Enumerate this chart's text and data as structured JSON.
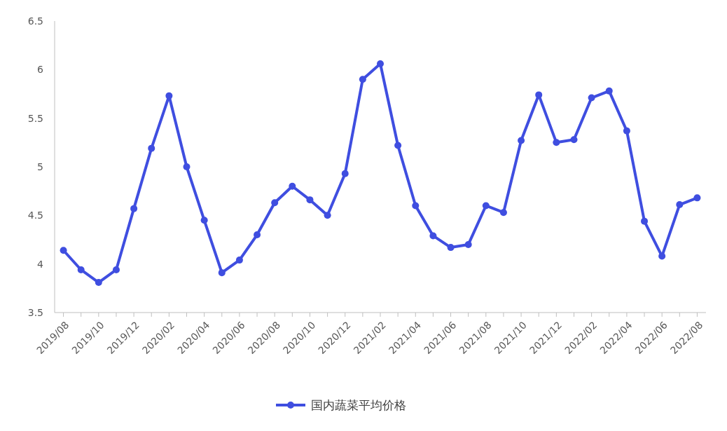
{
  "chart_data": {
    "type": "line",
    "categories": [
      "2019/08",
      null,
      "2019/10",
      null,
      "2019/12",
      null,
      "2020/02",
      null,
      "2020/04",
      null,
      "2020/06",
      null,
      "2020/08",
      null,
      "2020/10",
      null,
      "2020/12",
      null,
      "2021/02",
      null,
      "2021/04",
      null,
      "2021/06",
      null,
      "2021/08",
      null,
      "2021/10",
      null,
      "2021/12",
      null,
      "2022/02",
      null,
      "2022/04",
      null,
      "2022/06",
      null,
      "2022/08"
    ],
    "series": [
      {
        "name": "国内蔬菜平均价格",
        "color": "#3f4ee0",
        "values": [
          4.14,
          3.94,
          3.81,
          3.94,
          4.57,
          5.19,
          5.73,
          5.0,
          4.45,
          3.91,
          4.04,
          4.3,
          4.63,
          4.8,
          4.66,
          4.5,
          4.93,
          5.9,
          6.06,
          5.22,
          4.6,
          4.29,
          4.17,
          4.2,
          4.6,
          4.53,
          5.27,
          5.74,
          5.25,
          5.28,
          5.71,
          5.78,
          5.37,
          4.44,
          4.08,
          4.61,
          4.68
        ]
      }
    ],
    "ylim": [
      3.5,
      6.5
    ],
    "yticks": [
      3.5,
      4,
      4.5,
      5,
      5.5,
      6,
      6.5
    ],
    "grid": false,
    "legend": "bottom",
    "marker": "circle",
    "line_style": "solid"
  }
}
